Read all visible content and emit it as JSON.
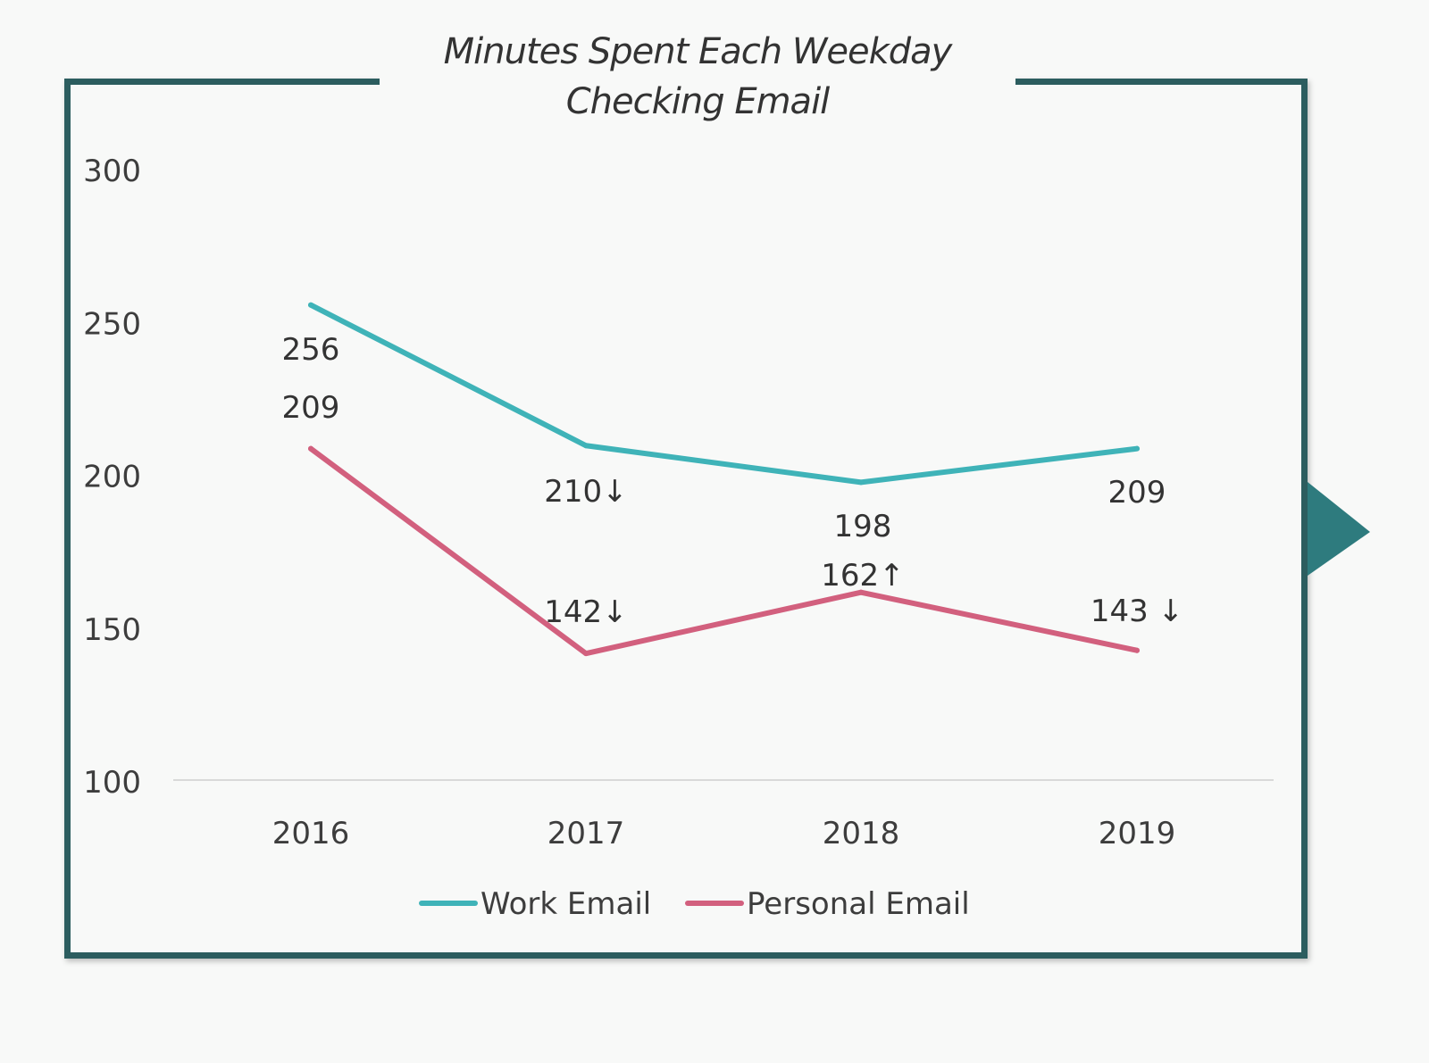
{
  "colors": {
    "frame": "#2c5d5f",
    "work": "#3fb3b8",
    "personal": "#d2607e",
    "baseline": "#d9d9d9"
  },
  "title_lines": [
    "Minutes Spent Each Weekday",
    "Checking Email"
  ],
  "chart_data": {
    "type": "line",
    "title": "Minutes Spent Each Weekday Checking Email",
    "categories": [
      "2016",
      "2017",
      "2018",
      "2019"
    ],
    "ylim": [
      100,
      300
    ],
    "yticks": [
      100,
      150,
      200,
      250,
      300
    ],
    "grid": false,
    "legend_position": "bottom",
    "series": [
      {
        "name": "Work Email",
        "values": [
          256,
          210,
          198,
          209
        ],
        "labels": [
          "256",
          "210↓",
          "198",
          "209"
        ]
      },
      {
        "name": "Personal Email",
        "values": [
          209,
          142,
          162,
          143
        ],
        "labels": [
          "209",
          "142↓",
          "162↑",
          "143 ↓"
        ]
      }
    ]
  }
}
